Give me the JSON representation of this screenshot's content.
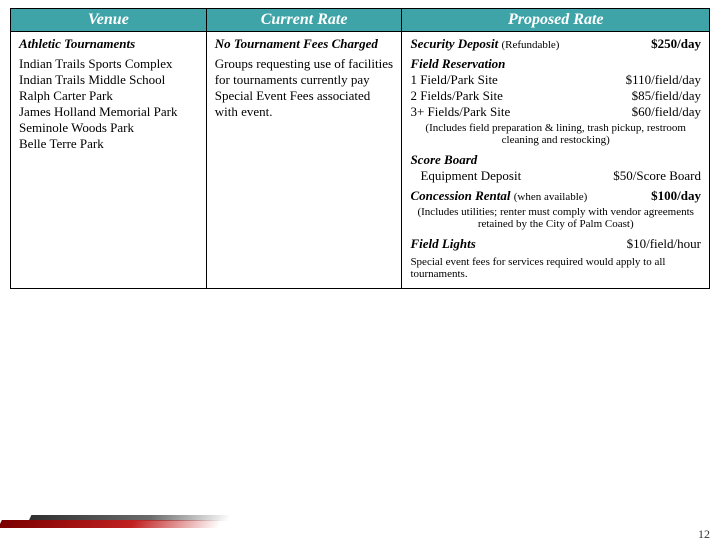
{
  "header": {
    "venue": "Venue",
    "current": "Current Rate",
    "proposed": "Proposed Rate"
  },
  "venue": {
    "title": "Athletic Tournaments",
    "list": [
      "Indian Trails Sports Complex",
      "Indian Trails Middle School",
      "Ralph Carter Park",
      "James Holland Memorial Park",
      "Seminole Woods Park",
      "Belle Terre Park"
    ]
  },
  "current": {
    "title": "No Tournament Fees Charged",
    "body": "Groups requesting use of facilities for tournaments currently pay Special Event Fees associated with event."
  },
  "proposed": {
    "security": {
      "label": "Security Deposit",
      "note": "(Refundable)",
      "amount": "$250/day"
    },
    "field_reservation": {
      "heading": "Field Reservation",
      "rows": [
        {
          "label": "1 Field/Park Site",
          "amount": "$110/field/day"
        },
        {
          "label": "2 Fields/Park Site",
          "amount": "$85/field/day"
        },
        {
          "label": "3+ Fields/Park Site",
          "amount": "$60/field/day"
        }
      ],
      "note": "(Includes field preparation & lining, trash pickup, restroom cleaning and restocking)"
    },
    "scoreboard": {
      "heading": "Score Board",
      "label": "Equipment Deposit",
      "amount": "$50/Score Board"
    },
    "concession": {
      "label": "Concession Rental",
      "note_inline": "(when available)",
      "amount": "$100/day",
      "note": "(Includes utilities; renter must comply with vendor agreements retained by the City of Palm Coast)"
    },
    "lights": {
      "label": "Field Lights",
      "amount": "$10/field/hour"
    },
    "footer": "Special event fees for services required would apply to all tournaments."
  },
  "page_number": "12"
}
